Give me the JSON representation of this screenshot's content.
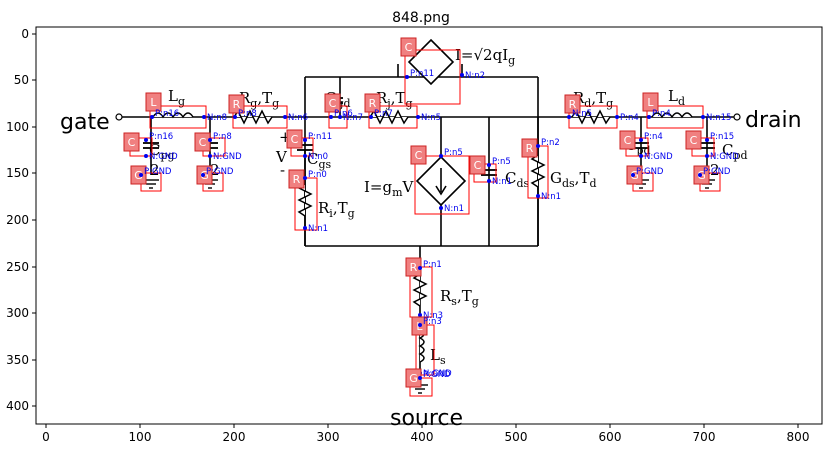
{
  "figure": {
    "title": "848.png",
    "x_ticks": [
      "0",
      "100",
      "200",
      "300",
      "400",
      "500",
      "600",
      "700",
      "800"
    ],
    "y_ticks": [
      "0",
      "50",
      "100",
      "150",
      "200",
      "250",
      "300",
      "350",
      "400"
    ]
  },
  "terminals": {
    "gate": "gate",
    "drain": "drain",
    "source": "source"
  },
  "math_labels": [
    {
      "text": "L",
      "sub": "g"
    },
    {
      "text": "R",
      "sub": "g",
      "extra": ",T",
      "sub2": "g"
    },
    {
      "text": "C",
      "sub": "gd"
    },
    {
      "text": "R",
      "sub": "j",
      "extra": ",T",
      "sub2": "g"
    },
    {
      "text": "R",
      "sub": "d",
      "extra": ",T",
      "sub2": "g"
    },
    {
      "text": "L",
      "sub": "d"
    },
    {
      "text": "C",
      "sub": "pg"
    },
    {
      "text": "C",
      "sub": "pd"
    },
    {
      "text": "C",
      "sub": "gs"
    },
    {
      "text": "R",
      "sub": "i",
      "extra": ",T",
      "sub2": "g"
    },
    {
      "text": "I=g",
      "sub": "m",
      "extra": "V"
    },
    {
      "text": "C",
      "sub": "ds"
    },
    {
      "text": "G",
      "sub": "ds",
      "extra": ",T",
      "sub2": "d"
    },
    {
      "text": "R",
      "sub": "s",
      "extra": ",T",
      "sub2": "g"
    },
    {
      "text": "L",
      "sub": "s"
    },
    {
      "text": "I=√2qI",
      "sub": "g"
    },
    {
      "text": "V"
    },
    {
      "text": "+"
    },
    {
      "text": "-"
    },
    {
      "text": "2"
    },
    {
      "text": "2"
    },
    {
      "text": "2"
    },
    {
      "text": "C",
      "sub": "pd"
    }
  ],
  "components": [
    {
      "sym": "C",
      "p": "P:n11",
      "n": "N:n2"
    },
    {
      "sym": "L",
      "p": "P:n16",
      "n": "N:n8"
    },
    {
      "sym": "R",
      "p": "P:n8",
      "n": "N:n6"
    },
    {
      "sym": "C",
      "p": "P:n6",
      "n": "N:n7"
    },
    {
      "sym": "R",
      "p": "P:n7",
      "n": "N:n5"
    },
    {
      "sym": "R",
      "p": "N:n5",
      "n": "P:n4"
    },
    {
      "sym": "L",
      "p": "P:n4",
      "n": "N:n15"
    },
    {
      "sym": "C",
      "p": "P:n16",
      "n": "N:GND"
    },
    {
      "sym": "C",
      "p": "P:n8",
      "n": "N:GND"
    },
    {
      "sym": "C",
      "p": "P:n11",
      "n": "N:n0"
    },
    {
      "sym": "C",
      "p": "P:n4",
      "n": "N:GND"
    },
    {
      "sym": "C",
      "p": "P:n15",
      "n": "N:GND"
    },
    {
      "sym": "G",
      "p": "P:GND"
    },
    {
      "sym": "G",
      "p": "P:GND"
    },
    {
      "sym": "G",
      "p": "P:GND"
    },
    {
      "sym": "G",
      "p": "P:GND"
    },
    {
      "sym": "R",
      "p": "P:n0",
      "n": "N:n1"
    },
    {
      "sym": "C",
      "p": "P:n5",
      "n": "N:n1"
    },
    {
      "sym": "C",
      "p": "P:n5",
      "n": "N:n1"
    },
    {
      "sym": "R",
      "p": "P:n2",
      "n": "N:n1"
    },
    {
      "sym": "R",
      "p": "P:n1",
      "n": "N:n3"
    },
    {
      "sym": "L",
      "p": "P:n3",
      "n": "N:GND"
    },
    {
      "sym": "G",
      "p": "P:GND"
    }
  ]
}
